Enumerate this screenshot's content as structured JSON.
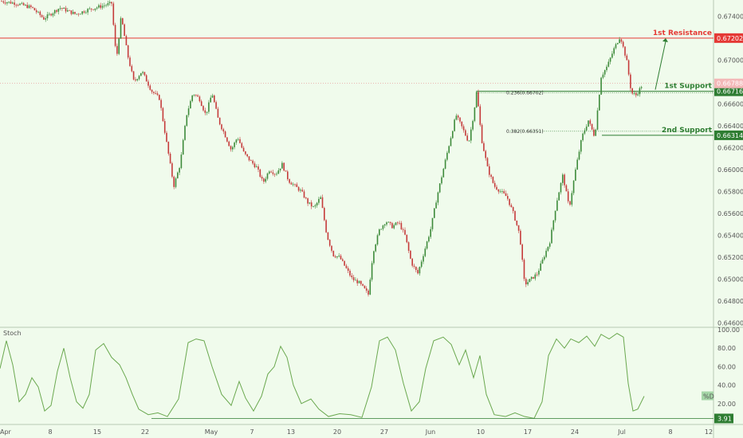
{
  "colors": {
    "background": "#f0fbec",
    "up_candle": "#3d8a3a",
    "down_candle": "#c53a3a",
    "resistance": "#e53935",
    "support": "#2e7d32",
    "stoch": "#6aa84f",
    "axis_text": "#555555"
  },
  "chart_data": [
    {
      "type": "candlestick",
      "title": "",
      "y_axis": {
        "ticks": [
          "0.67400",
          "0.67200",
          "0.67000",
          "0.66800",
          "0.66600",
          "0.66400",
          "0.66200",
          "0.66000",
          "0.65800",
          "0.65600",
          "0.65400",
          "0.65200",
          "0.65000",
          "0.64800",
          "0.64600"
        ],
        "ylim": [
          0.6456,
          0.6755
        ]
      },
      "x_axis": {
        "ticks": [
          "Apr",
          "8",
          "15",
          "22",
          "May",
          "7",
          "13",
          "20",
          "27",
          "Jun",
          "10",
          "17",
          "24",
          "Jul",
          "8",
          "12"
        ]
      },
      "close_path": [
        {
          "x": 0,
          "y": 0.6754
        },
        {
          "x": 20,
          "y": 0.6752
        },
        {
          "x": 40,
          "y": 0.6748
        },
        {
          "x": 55,
          "y": 0.6738
        },
        {
          "x": 75,
          "y": 0.6748
        },
        {
          "x": 95,
          "y": 0.6742
        },
        {
          "x": 110,
          "y": 0.6746
        },
        {
          "x": 130,
          "y": 0.675
        },
        {
          "x": 140,
          "y": 0.6752
        },
        {
          "x": 146,
          "y": 0.67
        },
        {
          "x": 152,
          "y": 0.674
        },
        {
          "x": 160,
          "y": 0.6705
        },
        {
          "x": 168,
          "y": 0.668
        },
        {
          "x": 178,
          "y": 0.669
        },
        {
          "x": 190,
          "y": 0.6672
        },
        {
          "x": 200,
          "y": 0.6665
        },
        {
          "x": 210,
          "y": 0.662
        },
        {
          "x": 218,
          "y": 0.6585
        },
        {
          "x": 226,
          "y": 0.6605
        },
        {
          "x": 234,
          "y": 0.665
        },
        {
          "x": 242,
          "y": 0.667
        },
        {
          "x": 250,
          "y": 0.6665
        },
        {
          "x": 258,
          "y": 0.665
        },
        {
          "x": 266,
          "y": 0.667
        },
        {
          "x": 274,
          "y": 0.6645
        },
        {
          "x": 282,
          "y": 0.6632
        },
        {
          "x": 290,
          "y": 0.6618
        },
        {
          "x": 298,
          "y": 0.663
        },
        {
          "x": 306,
          "y": 0.6615
        },
        {
          "x": 314,
          "y": 0.6608
        },
        {
          "x": 322,
          "y": 0.6602
        },
        {
          "x": 330,
          "y": 0.6588
        },
        {
          "x": 338,
          "y": 0.66
        },
        {
          "x": 346,
          "y": 0.6596
        },
        {
          "x": 354,
          "y": 0.6605
        },
        {
          "x": 362,
          "y": 0.659
        },
        {
          "x": 370,
          "y": 0.6585
        },
        {
          "x": 378,
          "y": 0.658
        },
        {
          "x": 386,
          "y": 0.657
        },
        {
          "x": 394,
          "y": 0.6565
        },
        {
          "x": 402,
          "y": 0.6575
        },
        {
          "x": 410,
          "y": 0.654
        },
        {
          "x": 418,
          "y": 0.6522
        },
        {
          "x": 426,
          "y": 0.652
        },
        {
          "x": 434,
          "y": 0.651
        },
        {
          "x": 442,
          "y": 0.65
        },
        {
          "x": 450,
          "y": 0.6497
        },
        {
          "x": 458,
          "y": 0.649
        },
        {
          "x": 462,
          "y": 0.6486
        },
        {
          "x": 468,
          "y": 0.6525
        },
        {
          "x": 476,
          "y": 0.6545
        },
        {
          "x": 484,
          "y": 0.6553
        },
        {
          "x": 492,
          "y": 0.6548
        },
        {
          "x": 500,
          "y": 0.6552
        },
        {
          "x": 508,
          "y": 0.654
        },
        {
          "x": 516,
          "y": 0.6515
        },
        {
          "x": 524,
          "y": 0.6505
        },
        {
          "x": 532,
          "y": 0.6525
        },
        {
          "x": 540,
          "y": 0.6545
        },
        {
          "x": 548,
          "y": 0.6575
        },
        {
          "x": 556,
          "y": 0.66
        },
        {
          "x": 564,
          "y": 0.6625
        },
        {
          "x": 572,
          "y": 0.665
        },
        {
          "x": 580,
          "y": 0.6638
        },
        {
          "x": 588,
          "y": 0.6625
        },
        {
          "x": 594,
          "y": 0.665
        },
        {
          "x": 598,
          "y": 0.6672
        },
        {
          "x": 604,
          "y": 0.6628
        },
        {
          "x": 612,
          "y": 0.66
        },
        {
          "x": 620,
          "y": 0.6585
        },
        {
          "x": 628,
          "y": 0.658
        },
        {
          "x": 636,
          "y": 0.6575
        },
        {
          "x": 644,
          "y": 0.656
        },
        {
          "x": 652,
          "y": 0.654
        },
        {
          "x": 658,
          "y": 0.6495
        },
        {
          "x": 666,
          "y": 0.65
        },
        {
          "x": 674,
          "y": 0.6505
        },
        {
          "x": 682,
          "y": 0.652
        },
        {
          "x": 690,
          "y": 0.6535
        },
        {
          "x": 698,
          "y": 0.657
        },
        {
          "x": 706,
          "y": 0.6595
        },
        {
          "x": 714,
          "y": 0.6565
        },
        {
          "x": 722,
          "y": 0.66
        },
        {
          "x": 730,
          "y": 0.663
        },
        {
          "x": 738,
          "y": 0.6645
        },
        {
          "x": 746,
          "y": 0.663
        },
        {
          "x": 754,
          "y": 0.6685
        },
        {
          "x": 762,
          "y": 0.6695
        },
        {
          "x": 770,
          "y": 0.671
        },
        {
          "x": 778,
          "y": 0.6722
        },
        {
          "x": 786,
          "y": 0.67
        },
        {
          "x": 792,
          "y": 0.667
        },
        {
          "x": 798,
          "y": 0.6668
        },
        {
          "x": 806,
          "y": 0.6678
        }
      ],
      "lines": [
        {
          "label": "1st Resistance",
          "price": "0.67202",
          "value": 0.67202,
          "color": "#e53935"
        },
        {
          "label": "1st Support",
          "price": "0.66716",
          "value": 0.66716,
          "color": "#2e7d32"
        },
        {
          "label": "2nd Support",
          "price": "0.66314",
          "value": 0.66314,
          "color": "#2e7d32"
        }
      ],
      "fib_labels": [
        {
          "text": "0.236(0.66702)",
          "value": 0.66702
        },
        {
          "text": "0.382(0.66351)",
          "value": 0.66351
        }
      ],
      "current_price": {
        "text": "0.66788",
        "value": 0.66788
      }
    },
    {
      "type": "line",
      "title": "Stoch",
      "ylim": [
        0,
        100
      ],
      "y_ticks": [
        "100.00",
        "80.00",
        "60.00",
        "40.00",
        "20.00"
      ],
      "series": [
        {
          "name": "%D",
          "points": [
            {
              "x": 0,
              "y": 58
            },
            {
              "x": 8,
              "y": 88
            },
            {
              "x": 16,
              "y": 62
            },
            {
              "x": 24,
              "y": 22
            },
            {
              "x": 32,
              "y": 30
            },
            {
              "x": 40,
              "y": 48
            },
            {
              "x": 48,
              "y": 38
            },
            {
              "x": 56,
              "y": 12
            },
            {
              "x": 64,
              "y": 18
            },
            {
              "x": 72,
              "y": 55
            },
            {
              "x": 80,
              "y": 80
            },
            {
              "x": 88,
              "y": 48
            },
            {
              "x": 96,
              "y": 22
            },
            {
              "x": 104,
              "y": 15
            },
            {
              "x": 112,
              "y": 30
            },
            {
              "x": 120,
              "y": 78
            },
            {
              "x": 130,
              "y": 85
            },
            {
              "x": 140,
              "y": 70
            },
            {
              "x": 150,
              "y": 62
            },
            {
              "x": 158,
              "y": 48
            },
            {
              "x": 166,
              "y": 30
            },
            {
              "x": 174,
              "y": 14
            },
            {
              "x": 186,
              "y": 8
            },
            {
              "x": 198,
              "y": 10
            },
            {
              "x": 210,
              "y": 6
            },
            {
              "x": 224,
              "y": 25
            },
            {
              "x": 236,
              "y": 86
            },
            {
              "x": 246,
              "y": 90
            },
            {
              "x": 256,
              "y": 88
            },
            {
              "x": 266,
              "y": 60
            },
            {
              "x": 278,
              "y": 30
            },
            {
              "x": 290,
              "y": 18
            },
            {
              "x": 300,
              "y": 44
            },
            {
              "x": 308,
              "y": 26
            },
            {
              "x": 318,
              "y": 12
            },
            {
              "x": 328,
              "y": 28
            },
            {
              "x": 336,
              "y": 52
            },
            {
              "x": 344,
              "y": 60
            },
            {
              "x": 352,
              "y": 82
            },
            {
              "x": 360,
              "y": 70
            },
            {
              "x": 368,
              "y": 40
            },
            {
              "x": 378,
              "y": 20
            },
            {
              "x": 390,
              "y": 25
            },
            {
              "x": 400,
              "y": 14
            },
            {
              "x": 412,
              "y": 6
            },
            {
              "x": 426,
              "y": 9
            },
            {
              "x": 440,
              "y": 8
            },
            {
              "x": 454,
              "y": 5
            },
            {
              "x": 466,
              "y": 38
            },
            {
              "x": 476,
              "y": 88
            },
            {
              "x": 486,
              "y": 92
            },
            {
              "x": 496,
              "y": 78
            },
            {
              "x": 506,
              "y": 42
            },
            {
              "x": 516,
              "y": 12
            },
            {
              "x": 526,
              "y": 22
            },
            {
              "x": 534,
              "y": 58
            },
            {
              "x": 544,
              "y": 88
            },
            {
              "x": 556,
              "y": 92
            },
            {
              "x": 566,
              "y": 84
            },
            {
              "x": 576,
              "y": 62
            },
            {
              "x": 584,
              "y": 78
            },
            {
              "x": 594,
              "y": 48
            },
            {
              "x": 602,
              "y": 72
            },
            {
              "x": 610,
              "y": 30
            },
            {
              "x": 620,
              "y": 8
            },
            {
              "x": 634,
              "y": 6
            },
            {
              "x": 646,
              "y": 10
            },
            {
              "x": 658,
              "y": 6
            },
            {
              "x": 670,
              "y": 4
            },
            {
              "x": 680,
              "y": 22
            },
            {
              "x": 688,
              "y": 72
            },
            {
              "x": 698,
              "y": 90
            },
            {
              "x": 708,
              "y": 80
            },
            {
              "x": 716,
              "y": 90
            },
            {
              "x": 726,
              "y": 86
            },
            {
              "x": 736,
              "y": 93
            },
            {
              "x": 746,
              "y": 82
            },
            {
              "x": 754,
              "y": 95
            },
            {
              "x": 764,
              "y": 90
            },
            {
              "x": 774,
              "y": 96
            },
            {
              "x": 782,
              "y": 92
            },
            {
              "x": 788,
              "y": 42
            },
            {
              "x": 794,
              "y": 12
            },
            {
              "x": 800,
              "y": 14
            },
            {
              "x": 808,
              "y": 28
            }
          ]
        }
      ],
      "level_line": {
        "text": "3.91",
        "value": 3.91
      },
      "legend_tag": "%D"
    }
  ]
}
